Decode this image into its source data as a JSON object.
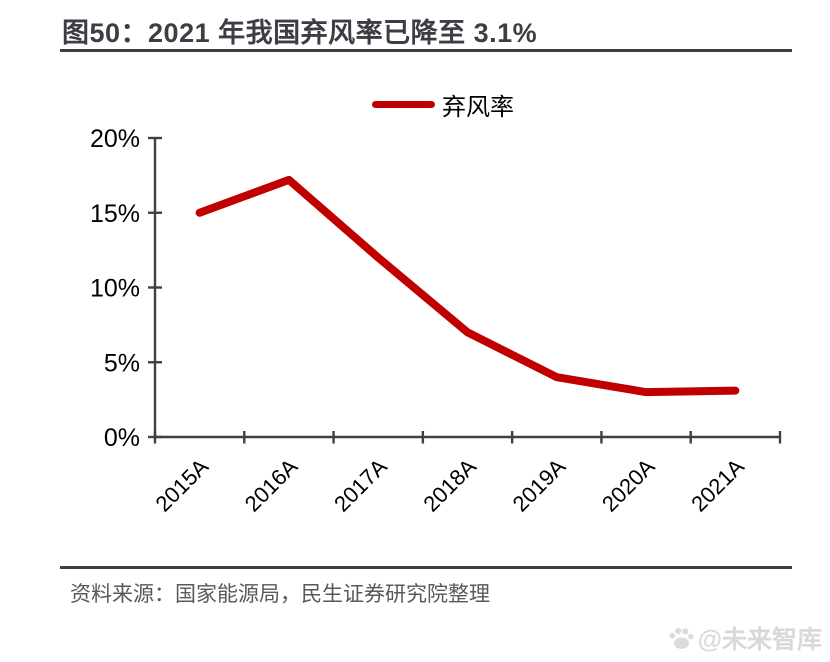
{
  "figure": {
    "title": "图50：2021 年我国弃风率已降至 3.1%"
  },
  "footer": {
    "source": "资料来源：国家能源局，民生证券研究院整理",
    "watermark": "@未来智库"
  },
  "colors": {
    "line": "#c00000",
    "title_text": "#3d3d46",
    "rule": "#3f3f3f",
    "axis": "#404040",
    "tick_label": "#000000",
    "source_text": "#595959",
    "watermark": "#d9d9d9"
  },
  "chart_data": {
    "type": "line",
    "title": "图50：2021 年我国弃风率已降至 3.1%",
    "categories": [
      "2015A",
      "2016A",
      "2017A",
      "2018A",
      "2019A",
      "2020A",
      "2021A"
    ],
    "series": [
      {
        "name": "弃风率",
        "color": "#c00000",
        "values": [
          15.0,
          17.2,
          12.0,
          7.0,
          4.0,
          3.0,
          3.1
        ]
      }
    ],
    "unit": "%",
    "ylim": [
      0,
      20
    ],
    "ytick_step": 5,
    "ytick_labels": [
      "0%",
      "5%",
      "10%",
      "15%",
      "20%"
    ],
    "xlabel": "",
    "ylabel": "",
    "grid": false,
    "legend_position": "top-center",
    "x_label_rotation": -45
  }
}
